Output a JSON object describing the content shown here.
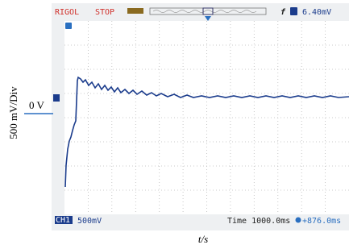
{
  "header": {
    "brand": "RIGOL",
    "status": "STOP",
    "trigger_level": "6.40mV"
  },
  "footer": {
    "channel": "CH1",
    "scale": "500mV",
    "time_base": "Time 1000.0ms",
    "offset": "+876.0ms"
  },
  "labels": {
    "y_axis": "500 mV/Div",
    "zero": "0 V",
    "x_axis": "t/s"
  }
}
